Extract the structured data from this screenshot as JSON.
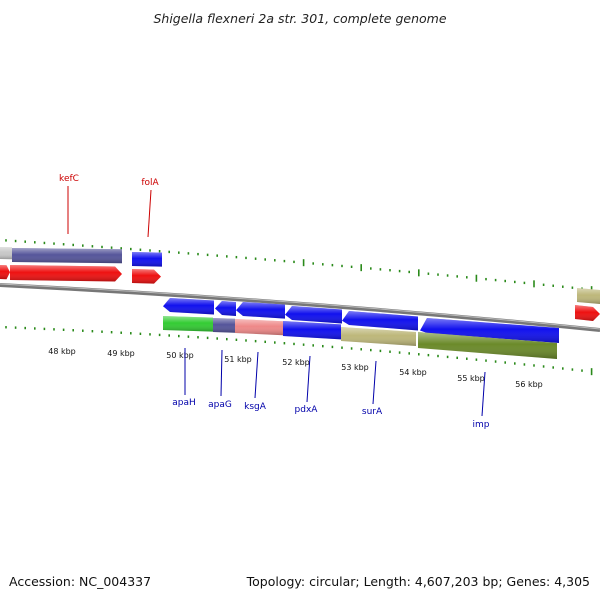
{
  "title": "Shigella flexneri 2a str. 301, complete genome",
  "footer": {
    "accession": "Accession: NC_004337",
    "summary": "Topology: circular; Length: 4,607,203 bp; Genes: 4,305"
  },
  "colors": {
    "backbone": "#8a8a8a",
    "tick": "#2a8a1a",
    "forward_label": "#cc0000",
    "reverse_label": "#0000aa"
  },
  "scale": {
    "unit": "kbp",
    "labels": [
      "48 kbp",
      "49 kbp",
      "50 kbp",
      "51 kbp",
      "52 kbp",
      "53 kbp",
      "54 kbp",
      "55 kbp",
      "56 kbp"
    ]
  },
  "genes": [
    {
      "name": "kefC",
      "strand": "forward",
      "labeled": true
    },
    {
      "name": "folA",
      "strand": "forward",
      "labeled": true
    },
    {
      "name": "apaH",
      "strand": "reverse",
      "labeled": true
    },
    {
      "name": "apaG",
      "strand": "reverse",
      "labeled": true
    },
    {
      "name": "ksgA",
      "strand": "reverse",
      "labeled": true
    },
    {
      "name": "pdxA",
      "strand": "reverse",
      "labeled": true
    },
    {
      "name": "surA",
      "strand": "reverse",
      "labeled": true
    },
    {
      "name": "imp",
      "strand": "reverse",
      "labeled": true
    }
  ],
  "cog_colors": {
    "grey": "#c8c8c8",
    "purple": "#55559a",
    "red": "#ee1111",
    "blue": "#1111ee",
    "green": "#33cc33",
    "pink": "#ee8888",
    "khaki": "#bdb77a",
    "olive": "#6b8a2a"
  }
}
